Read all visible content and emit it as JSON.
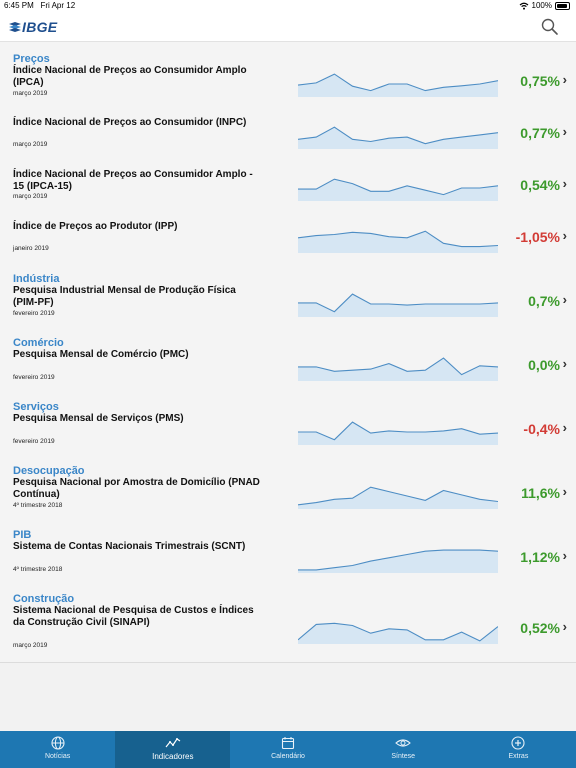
{
  "status": {
    "time": "6:45 PM",
    "date": "Fri Apr 12",
    "battery": "100%"
  },
  "app": {
    "logo": "IBGE",
    "search_icon": "search-icon"
  },
  "indicators": [
    {
      "category": "Preços",
      "name": "Índice Nacional de Preços ao Consumidor Amplo (IPCA)",
      "date": "março 2019",
      "value": "0,75%",
      "trend": "pos",
      "spark": [
        0.45,
        0.55,
        0.95,
        0.4,
        0.2,
        0.5,
        0.5,
        0.2,
        0.35,
        0.42,
        0.5,
        0.65
      ]
    },
    {
      "category": "",
      "name": "Índice Nacional de Preços ao Consumidor (INPC)",
      "date": "março 2019",
      "value": "0,77%",
      "trend": "pos",
      "spark": [
        0.35,
        0.45,
        0.9,
        0.35,
        0.25,
        0.4,
        0.45,
        0.15,
        0.35,
        0.45,
        0.55,
        0.65
      ]
    },
    {
      "category": "",
      "name": "Índice Nacional de Preços ao Consumidor Amplo - 15 (IPCA-15)",
      "date": "março 2019",
      "value": "0,54%",
      "trend": "pos",
      "spark": [
        0.45,
        0.45,
        0.9,
        0.7,
        0.35,
        0.35,
        0.6,
        0.4,
        0.2,
        0.5,
        0.5,
        0.6
      ]
    },
    {
      "category": "",
      "name": "Índice de Preços ao Produtor (IPP)",
      "date": "janeiro 2019",
      "value": "-1,05%",
      "trend": "neg",
      "spark": [
        0.6,
        0.7,
        0.75,
        0.85,
        0.8,
        0.65,
        0.6,
        0.9,
        0.35,
        0.2,
        0.2,
        0.25
      ]
    },
    {
      "category": "Indústria",
      "name": "Pesquisa Industrial Mensal de Produção Física (PIM-PF)",
      "date": "fevereiro 2019",
      "value": "0,7%",
      "trend": "pos",
      "spark": [
        0.55,
        0.55,
        0.15,
        0.95,
        0.5,
        0.5,
        0.45,
        0.5,
        0.5,
        0.5,
        0.5,
        0.55
      ]
    },
    {
      "category": "Comércio",
      "name": "Pesquisa Mensal de Comércio (PMC)",
      "date": "fevereiro 2019",
      "value": "0,0%",
      "trend": "pos",
      "spark": [
        0.55,
        0.55,
        0.35,
        0.4,
        0.45,
        0.7,
        0.35,
        0.4,
        0.95,
        0.2,
        0.6,
        0.55
      ]
    },
    {
      "category": "Serviços",
      "name": "Pesquisa Mensal de Serviços (PMS)",
      "date": "fevereiro 2019",
      "value": "-0,4%",
      "trend": "neg",
      "spark": [
        0.5,
        0.5,
        0.15,
        0.95,
        0.45,
        0.55,
        0.5,
        0.5,
        0.55,
        0.65,
        0.4,
        0.45
      ]
    },
    {
      "category": "Desocupação",
      "name": "Pesquisa Nacional por Amostra de Domicílio (PNAD Contínua)",
      "date": "4º trimestre 2018",
      "value": "11,6%",
      "trend": "pos",
      "spark": [
        0.1,
        0.2,
        0.35,
        0.4,
        0.9,
        0.7,
        0.5,
        0.3,
        0.75,
        0.55,
        0.35,
        0.25
      ]
    },
    {
      "category": "PIB",
      "name": "Sistema de Contas Nacionais Trimestrais (SCNT)",
      "date": "4º trimestre 2018",
      "value": "1,12%",
      "trend": "pos",
      "spark": [
        0.05,
        0.05,
        0.15,
        0.25,
        0.45,
        0.6,
        0.75,
        0.9,
        0.95,
        0.95,
        0.95,
        0.9
      ]
    },
    {
      "category": "Construção",
      "name": "Sistema Nacional de Pesquisa de Custos e Índices da Construção Civil (SINAPI)",
      "date": "março 2019",
      "value": "0,52%",
      "trend": "pos",
      "spark": [
        0.1,
        0.8,
        0.85,
        0.75,
        0.4,
        0.6,
        0.55,
        0.1,
        0.1,
        0.45,
        0.05,
        0.7
      ]
    }
  ],
  "tabs": [
    {
      "label": "Notícias",
      "icon": "globe-icon",
      "active": false
    },
    {
      "label": "Indicadores",
      "icon": "trend-line-icon",
      "active": true
    },
    {
      "label": "Calendário",
      "icon": "calendar-icon",
      "active": false
    },
    {
      "label": "Síntese",
      "icon": "eye-icon",
      "active": false
    },
    {
      "label": "Extras",
      "icon": "plus-circle-icon",
      "active": false
    }
  ],
  "colors": {
    "accent": "#1e77b2",
    "category": "#3a86c8",
    "positive": "#3c9a2c",
    "negative": "#d23b35"
  }
}
